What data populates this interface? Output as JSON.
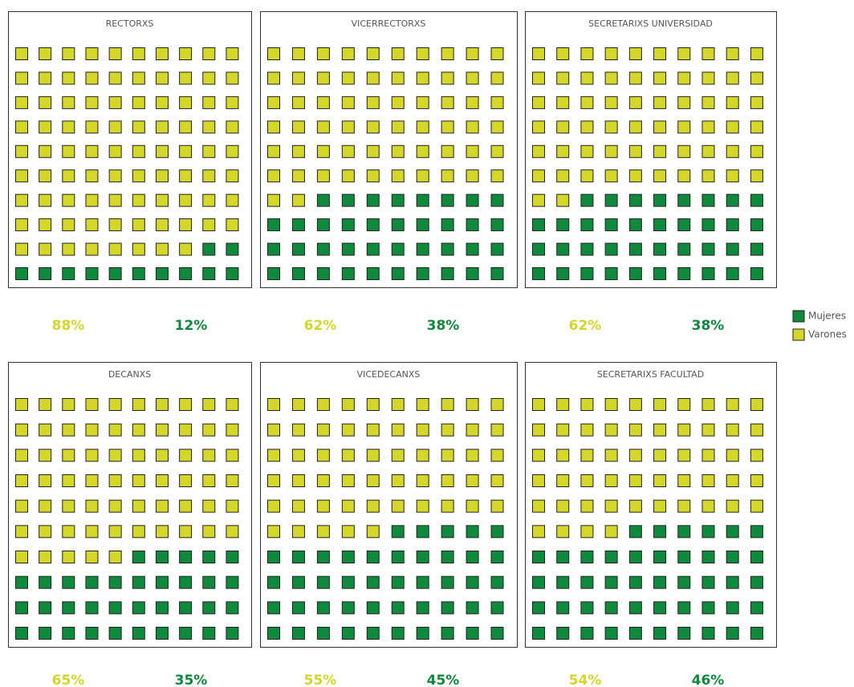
{
  "chart_data": [
    {
      "type": "waffle",
      "title": "RECTORXS",
      "series": [
        {
          "name": "Mujeres",
          "color": "#0f8a3c",
          "values": [
            12
          ],
          "value_labels": [
            "12%"
          ]
        },
        {
          "name": "Varones",
          "color": "#d4d62a",
          "values": [
            88
          ],
          "value_labels": [
            "88%"
          ]
        }
      ]
    },
    {
      "type": "waffle",
      "title": "VICERRECTORXS",
      "series": [
        {
          "name": "Mujeres",
          "color": "#0f8a3c",
          "values": [
            38
          ],
          "value_labels": [
            "38%"
          ]
        },
        {
          "name": "Varones",
          "color": "#d4d62a",
          "values": [
            62
          ],
          "value_labels": [
            "62%"
          ]
        }
      ]
    },
    {
      "type": "waffle",
      "title": "SECRETARIXS UNIVERSIDAD",
      "series": [
        {
          "name": "Mujeres",
          "color": "#0f8a3c",
          "values": [
            38
          ],
          "value_labels": [
            "38%"
          ]
        },
        {
          "name": "Varones",
          "color": "#d4d62a",
          "values": [
            62
          ],
          "value_labels": [
            "62%"
          ]
        }
      ]
    },
    {
      "type": "waffle",
      "title": "DECANXS",
      "series": [
        {
          "name": "Mujeres",
          "color": "#0f8a3c",
          "values": [
            35
          ],
          "value_labels": [
            "35%"
          ]
        },
        {
          "name": "Varones",
          "color": "#d4d62a",
          "values": [
            65
          ],
          "value_labels": [
            "65%"
          ]
        }
      ]
    },
    {
      "type": "waffle",
      "title": "VICEDECANXS",
      "series": [
        {
          "name": "Mujeres",
          "color": "#0f8a3c",
          "values": [
            45
          ],
          "value_labels": [
            "45%"
          ]
        },
        {
          "name": "Varones",
          "color": "#d4d62a",
          "values": [
            55
          ],
          "value_labels": [
            "55%"
          ]
        }
      ]
    },
    {
      "type": "waffle",
      "title": "SECRETARIXS FACULTAD",
      "series": [
        {
          "name": "Mujeres",
          "color": "#0f8a3c",
          "values": [
            46
          ],
          "value_labels": [
            "46%"
          ]
        },
        {
          "name": "Varones",
          "color": "#d4d62a",
          "values": [
            54
          ],
          "value_labels": [
            "54%"
          ]
        }
      ]
    }
  ],
  "legend": [
    {
      "name": "Mujeres",
      "color": "#0f8a3c"
    },
    {
      "name": "Varones",
      "color": "#d4d62a"
    }
  ]
}
